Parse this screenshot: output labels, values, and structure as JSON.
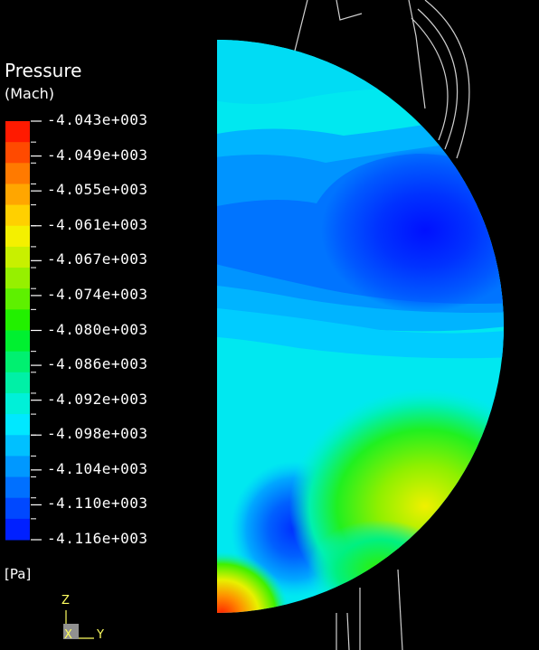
{
  "chart_data": {
    "type": "heatmap",
    "title": "Pressure",
    "subtitle": "(Mach)",
    "unit": "[Pa]",
    "colorbar": {
      "ticks": [
        "-4.043e+003",
        "-4.049e+003",
        "-4.055e+003",
        "-4.061e+003",
        "-4.067e+003",
        "-4.074e+003",
        "-4.080e+003",
        "-4.086e+003",
        "-4.092e+003",
        "-4.098e+003",
        "-4.104e+003",
        "-4.110e+003",
        "-4.116e+003"
      ],
      "range": [
        -4116,
        -4043
      ],
      "colors": [
        "#ff1a00",
        "#ff4a00",
        "#ff7a00",
        "#ffa600",
        "#ffd000",
        "#f4f000",
        "#c8f000",
        "#96f000",
        "#5ef000",
        "#22f000",
        "#00f030",
        "#00f070",
        "#00f0a6",
        "#00f0d8",
        "#00e8ff",
        "#00c0ff",
        "#0098ff",
        "#0070ff",
        "#0048ff",
        "#0020ff"
      ]
    },
    "axes": {
      "z_label": "Z",
      "x_label": "X",
      "y_label": "Y"
    }
  }
}
